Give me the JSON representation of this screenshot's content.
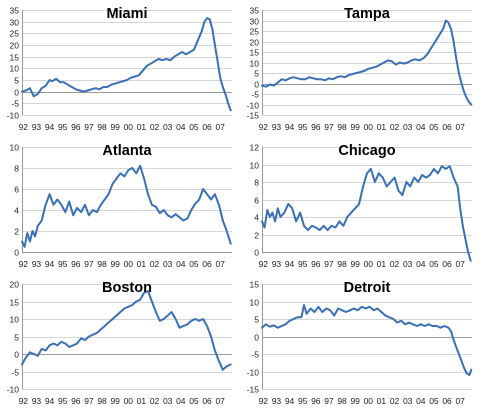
{
  "style": {
    "line_color": "#3a70b5",
    "grid": true
  },
  "chart_data": [
    {
      "type": "line",
      "title": "Miami",
      "xlabel": "",
      "ylabel": "",
      "x_ticks": [
        "92",
        "93",
        "94",
        "95",
        "96",
        "97",
        "98",
        "99",
        "00",
        "01",
        "02",
        "03",
        "04",
        "05",
        "06",
        "07"
      ],
      "xlim": [
        1992.0,
        2008.0
      ],
      "ylim": [
        -10,
        35
      ],
      "y_ticks": [
        -10,
        -5,
        0,
        5,
        10,
        15,
        20,
        25,
        30,
        35
      ],
      "series": [
        {
          "x": [
            1992.0,
            1992.3,
            1992.6,
            1992.9,
            1993.2,
            1993.5,
            1993.8,
            1994.1,
            1994.3,
            1994.6,
            1994.9,
            1995.2,
            1995.5,
            1995.8,
            1996.1,
            1996.4,
            1996.7,
            1997.0,
            1997.3,
            1997.6,
            1997.9,
            1998.2,
            1998.5,
            1998.8,
            1999.1,
            1999.4,
            1999.7,
            2000.0,
            2000.3,
            2000.6,
            2000.9,
            2001.2,
            2001.5,
            2001.8,
            2002.1,
            2002.4,
            2002.7,
            2003.0,
            2003.3,
            2003.6,
            2003.9,
            2004.2,
            2004.5,
            2004.8,
            2005.1,
            2005.4,
            2005.7,
            2005.9,
            2006.1,
            2006.3,
            2006.5,
            2006.7,
            2006.9,
            2007.1,
            2007.3,
            2007.5,
            2007.7,
            2007.9
          ],
          "y": [
            0,
            0.5,
            1.5,
            -2,
            -1,
            1.5,
            2.5,
            5,
            4.5,
            5.5,
            4,
            4,
            3,
            2,
            1,
            0.5,
            0,
            0.5,
            1,
            1.5,
            1,
            2,
            2,
            3,
            3.5,
            4,
            4.5,
            5,
            6,
            6.5,
            7,
            9,
            11,
            12,
            13,
            14,
            13.5,
            14,
            13.5,
            15,
            16,
            17,
            16,
            17,
            18,
            22,
            26,
            30,
            31.5,
            31,
            27,
            20,
            13,
            6,
            2,
            -1,
            -5,
            -8
          ]
        }
      ]
    },
    {
      "type": "line",
      "title": "Tampa",
      "xlabel": "",
      "ylabel": "",
      "x_ticks": [
        "92",
        "93",
        "94",
        "95",
        "96",
        "97",
        "98",
        "99",
        "00",
        "01",
        "02",
        "03",
        "04",
        "05",
        "06",
        "07"
      ],
      "xlim": [
        1992.0,
        2008.0
      ],
      "ylim": [
        -15,
        35
      ],
      "y_ticks": [
        -15,
        -10,
        -5,
        0,
        5,
        10,
        15,
        20,
        25,
        30,
        35
      ],
      "series": [
        {
          "x": [
            1992.0,
            1992.3,
            1992.6,
            1992.9,
            1993.2,
            1993.5,
            1993.8,
            1994.1,
            1994.4,
            1994.7,
            1995.0,
            1995.3,
            1995.6,
            1995.9,
            1996.2,
            1996.5,
            1996.8,
            1997.1,
            1997.4,
            1997.7,
            1998.0,
            1998.3,
            1998.6,
            1998.9,
            1999.2,
            1999.5,
            1999.8,
            2000.1,
            2000.4,
            2000.7,
            2001.0,
            2001.3,
            2001.6,
            2001.9,
            2002.2,
            2002.5,
            2002.8,
            2003.1,
            2003.4,
            2003.7,
            2004.0,
            2004.3,
            2004.6,
            2004.9,
            2005.2,
            2005.5,
            2005.8,
            2006.0,
            2006.2,
            2006.4,
            2006.6,
            2006.8,
            2007.0,
            2007.2,
            2007.4,
            2007.6,
            2007.8,
            2007.95
          ],
          "y": [
            -1,
            -1.5,
            -0.5,
            -1,
            0.5,
            2,
            1.5,
            2.5,
            3,
            2.5,
            2,
            2,
            3,
            2.5,
            2,
            2,
            1.5,
            2.5,
            2,
            3,
            3.5,
            3,
            4,
            4.5,
            5,
            5.5,
            6,
            7,
            7.5,
            8,
            9,
            10,
            11,
            10.5,
            9,
            10,
            9.5,
            10,
            11,
            11.5,
            11,
            12,
            14,
            17,
            20,
            23,
            26,
            30,
            29,
            26,
            20,
            12,
            5,
            0,
            -4,
            -7,
            -9,
            -10
          ]
        }
      ]
    },
    {
      "type": "line",
      "title": "Atlanta",
      "xlabel": "",
      "ylabel": "",
      "x_ticks": [
        "92",
        "93",
        "94",
        "95",
        "96",
        "97",
        "98",
        "99",
        "00",
        "01",
        "02",
        "03",
        "04",
        "05",
        "06",
        "07"
      ],
      "xlim": [
        1992.0,
        2008.0
      ],
      "ylim": [
        0,
        10
      ],
      "y_ticks": [
        0,
        2,
        4,
        6,
        8,
        10
      ],
      "series": [
        {
          "x": [
            1992.0,
            1992.2,
            1992.4,
            1992.6,
            1992.8,
            1993.0,
            1993.2,
            1993.5,
            1993.8,
            1994.1,
            1994.4,
            1994.7,
            1995.0,
            1995.3,
            1995.6,
            1995.9,
            1996.2,
            1996.5,
            1996.8,
            1997.1,
            1997.4,
            1997.7,
            1998.0,
            1998.3,
            1998.6,
            1998.9,
            1999.2,
            1999.5,
            1999.8,
            2000.1,
            2000.4,
            2000.7,
            2001.0,
            2001.3,
            2001.6,
            2001.9,
            2002.2,
            2002.5,
            2002.8,
            2003.1,
            2003.4,
            2003.7,
            2004.0,
            2004.3,
            2004.6,
            2004.9,
            2005.2,
            2005.5,
            2005.8,
            2006.1,
            2006.4,
            2006.7,
            2007.0,
            2007.3,
            2007.6,
            2007.9
          ],
          "y": [
            1,
            0.5,
            1.8,
            1,
            2,
            1.5,
            2.5,
            3,
            4.5,
            5.5,
            4.5,
            5,
            4.5,
            3.8,
            4.8,
            3.5,
            4.2,
            3.8,
            4.5,
            3.5,
            4,
            3.8,
            4.5,
            5,
            5.5,
            6.5,
            7,
            7.5,
            7.2,
            7.8,
            8,
            7.5,
            8.2,
            7,
            5.5,
            4.5,
            4.3,
            3.7,
            4,
            3.5,
            3.3,
            3.6,
            3.3,
            3,
            3.2,
            4,
            4.6,
            5,
            6,
            5.5,
            5,
            5.5,
            4.5,
            3,
            2,
            0.8
          ]
        }
      ]
    },
    {
      "type": "line",
      "title": "Chicago",
      "xlabel": "",
      "ylabel": "",
      "x_ticks": [
        "92",
        "93",
        "94",
        "95",
        "96",
        "97",
        "98",
        "99",
        "00",
        "01",
        "02",
        "03",
        "04",
        "05",
        "06",
        "07"
      ],
      "xlim": [
        1992.0,
        2008.0
      ],
      "ylim": [
        0,
        12
      ],
      "y_ticks": [
        0,
        2,
        4,
        6,
        8,
        10,
        12
      ],
      "series": [
        {
          "x": [
            1992.0,
            1992.2,
            1992.4,
            1992.6,
            1992.8,
            1993.0,
            1993.2,
            1993.4,
            1993.7,
            1994.0,
            1994.3,
            1994.6,
            1994.9,
            1995.2,
            1995.5,
            1995.8,
            1996.1,
            1996.4,
            1996.7,
            1997.0,
            1997.3,
            1997.6,
            1997.9,
            1998.2,
            1998.5,
            1998.8,
            1999.1,
            1999.4,
            1999.7,
            2000.0,
            2000.3,
            2000.6,
            2000.9,
            2001.2,
            2001.5,
            2001.8,
            2002.1,
            2002.4,
            2002.7,
            2003.0,
            2003.3,
            2003.6,
            2003.9,
            2004.2,
            2004.5,
            2004.8,
            2005.1,
            2005.4,
            2005.7,
            2006.0,
            2006.3,
            2006.6,
            2006.9,
            2007.1,
            2007.3,
            2007.5,
            2007.7,
            2007.9
          ],
          "y": [
            3.5,
            2.8,
            4.8,
            4,
            4.5,
            3.5,
            5,
            4,
            4.5,
            5.5,
            5,
            3.5,
            4.5,
            3,
            2.5,
            3,
            2.8,
            2.5,
            3,
            2.5,
            3,
            2.8,
            3.5,
            3,
            4,
            4.5,
            5,
            5.5,
            7.5,
            9,
            9.5,
            8,
            9,
            8.5,
            7.5,
            8,
            8.5,
            7,
            6.5,
            8,
            7.5,
            8.5,
            8,
            8.8,
            8.5,
            8.8,
            9.5,
            9,
            9.8,
            9.5,
            9.8,
            8.5,
            7.5,
            5,
            3,
            1.5,
            0,
            -1
          ]
        }
      ]
    },
    {
      "type": "line",
      "title": "Boston",
      "xlabel": "",
      "ylabel": "",
      "x_ticks": [
        "92",
        "93",
        "94",
        "95",
        "96",
        "97",
        "98",
        "99",
        "00",
        "01",
        "02",
        "03",
        "04",
        "05",
        "06",
        "07"
      ],
      "xlim": [
        1992.0,
        2008.0
      ],
      "ylim": [
        -10,
        20
      ],
      "y_ticks": [
        -10,
        -5,
        0,
        5,
        10,
        15,
        20
      ],
      "series": [
        {
          "x": [
            1992.0,
            1992.3,
            1992.6,
            1992.9,
            1993.2,
            1993.5,
            1993.8,
            1994.1,
            1994.4,
            1994.7,
            1995.0,
            1995.3,
            1995.6,
            1995.9,
            1996.2,
            1996.5,
            1996.8,
            1997.1,
            1997.4,
            1997.7,
            1998.0,
            1998.3,
            1998.6,
            1998.9,
            1999.2,
            1999.5,
            1999.8,
            2000.1,
            2000.4,
            2000.7,
            2001.0,
            2001.3,
            2001.6,
            2001.9,
            2002.2,
            2002.5,
            2002.8,
            2003.1,
            2003.4,
            2003.7,
            2004.0,
            2004.3,
            2004.6,
            2004.9,
            2005.2,
            2005.5,
            2005.8,
            2006.1,
            2006.4,
            2006.7,
            2007.0,
            2007.3,
            2007.6,
            2007.9
          ],
          "y": [
            -3,
            -1,
            0.5,
            0,
            -0.5,
            1.5,
            1,
            2.5,
            3,
            2.5,
            3.5,
            3,
            2,
            2.5,
            3,
            4.5,
            4,
            5,
            5.5,
            6,
            7,
            8,
            9,
            10,
            11,
            12,
            13,
            13.5,
            14,
            15,
            15.5,
            17.5,
            18,
            15,
            12,
            9.5,
            10,
            11,
            12,
            10,
            7.5,
            8,
            8.5,
            9.5,
            10,
            9.5,
            10,
            8,
            5,
            1,
            -2,
            -4.5,
            -3.5,
            -3
          ]
        }
      ]
    },
    {
      "type": "line",
      "title": "Detroit",
      "xlabel": "",
      "ylabel": "",
      "x_ticks": [
        "92",
        "93",
        "94",
        "95",
        "96",
        "97",
        "98",
        "99",
        "00",
        "01",
        "02",
        "03",
        "04",
        "05",
        "06",
        "07"
      ],
      "xlim": [
        1992.0,
        2008.0
      ],
      "ylim": [
        -15,
        15
      ],
      "y_ticks": [
        -15,
        -10,
        -5,
        0,
        5,
        10,
        15
      ],
      "series": [
        {
          "x": [
            1992.0,
            1992.3,
            1992.6,
            1992.9,
            1993.2,
            1993.5,
            1993.8,
            1994.1,
            1994.4,
            1994.7,
            1995.0,
            1995.2,
            1995.4,
            1995.7,
            1996.0,
            1996.3,
            1996.6,
            1996.9,
            1997.2,
            1997.5,
            1997.8,
            1998.1,
            1998.4,
            1998.7,
            1999.0,
            1999.3,
            1999.6,
            1999.9,
            2000.2,
            2000.5,
            2000.8,
            2001.1,
            2001.4,
            2001.7,
            2002.0,
            2002.3,
            2002.6,
            2002.9,
            2003.2,
            2003.5,
            2003.8,
            2004.1,
            2004.4,
            2004.7,
            2005.0,
            2005.3,
            2005.6,
            2005.9,
            2006.2,
            2006.4,
            2006.6,
            2006.8,
            2007.0,
            2007.2,
            2007.4,
            2007.6,
            2007.8,
            2007.95
          ],
          "y": [
            2.5,
            3.5,
            2.8,
            3.2,
            2.5,
            3,
            3.5,
            4.5,
            5,
            5.5,
            5.5,
            9,
            6.5,
            8,
            7,
            8.5,
            7,
            8,
            7.5,
            6,
            8,
            7.5,
            7,
            7.5,
            8,
            7.5,
            8.5,
            8,
            8.5,
            7.5,
            8,
            7,
            6,
            5.5,
            5,
            4,
            4.5,
            3.5,
            4,
            3.5,
            3,
            3.5,
            3,
            3.5,
            3,
            3,
            2.5,
            3,
            2.5,
            1.5,
            -1,
            -3,
            -5,
            -7,
            -9,
            -10.5,
            -11,
            -9.5
          ]
        }
      ]
    }
  ]
}
